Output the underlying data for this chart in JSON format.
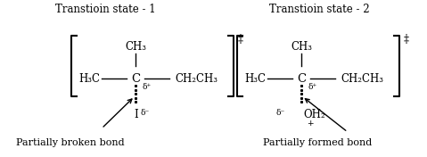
{
  "title1": "Transtioin state - 1",
  "title2": "Transtioin state - 2",
  "label1": "Partially broken bond",
  "label2": "Partially formed bond",
  "bg_color": "#ffffff",
  "text_color": "#000000",
  "font_size": 8.5,
  "small_font": 6.5
}
